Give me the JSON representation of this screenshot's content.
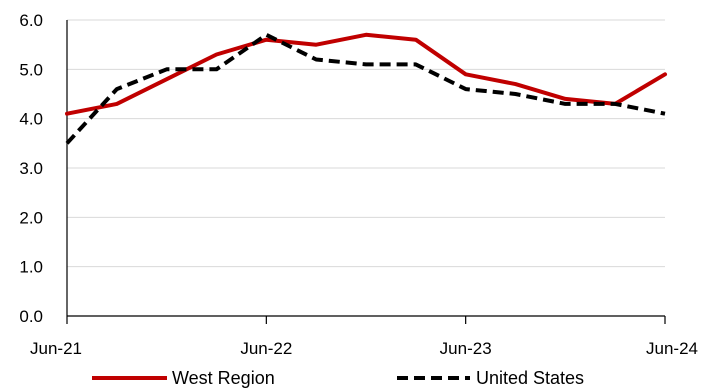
{
  "chart_data": {
    "type": "line",
    "x": [
      "Jun-21",
      "Sep-21",
      "Dec-21",
      "Mar-22",
      "Jun-22",
      "Sep-22",
      "Dec-22",
      "Mar-23",
      "Jun-23",
      "Sep-23",
      "Dec-23",
      "Mar-24",
      "Jun-24"
    ],
    "x_tick_labels": [
      "Jun-21",
      "Jun-22",
      "Jun-23",
      "Jun-24"
    ],
    "y_tick_labels": [
      "0.0",
      "1.0",
      "2.0",
      "3.0",
      "4.0",
      "5.0",
      "6.0"
    ],
    "ylim": [
      0,
      6
    ],
    "grid": true,
    "legend_position": "bottom",
    "series": [
      {
        "name": "West Region",
        "color": "#c00000",
        "style": "solid",
        "values": [
          4.1,
          4.3,
          4.8,
          5.3,
          5.6,
          5.5,
          5.7,
          5.6,
          4.9,
          4.7,
          4.4,
          4.3,
          4.9
        ]
      },
      {
        "name": "United States",
        "color": "#000000",
        "style": "dashed",
        "values": [
          3.5,
          4.6,
          5.0,
          5.0,
          5.7,
          5.2,
          5.1,
          5.1,
          4.6,
          4.5,
          4.3,
          4.3,
          4.1
        ]
      }
    ]
  }
}
